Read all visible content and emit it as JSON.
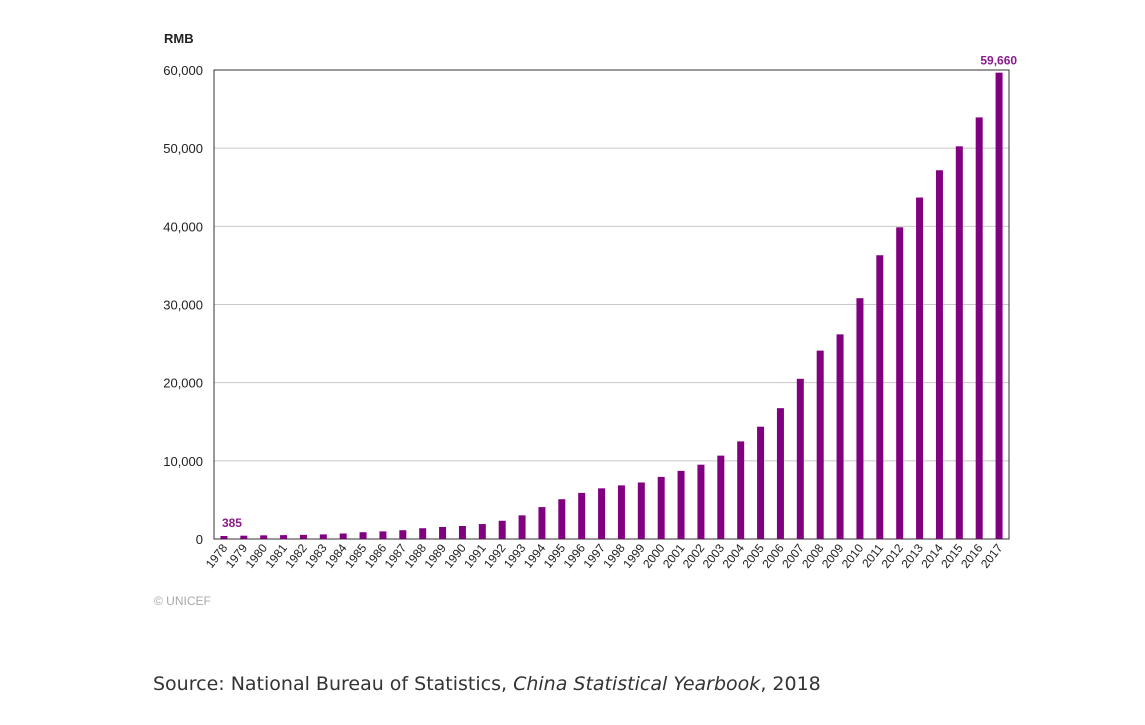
{
  "colors": {
    "bar": "#800080",
    "label_accent": "#8a1c8a",
    "grid": "#c8c8c8",
    "axis": "#333333",
    "text": "#222222"
  },
  "credit": "© UNICEF",
  "source": {
    "prefix": "Source: National Bureau of Statistics, ",
    "italic_title": "China Statistical Yearbook",
    "suffix": ", 2018"
  },
  "chart_data": {
    "type": "bar",
    "title": "",
    "xlabel": "",
    "ylabel": "RMB",
    "ylim": [
      0,
      60000
    ],
    "yticks": [
      0,
      10000,
      20000,
      30000,
      40000,
      50000,
      60000
    ],
    "ytick_labels": [
      "0",
      "10,000",
      "20,000",
      "30,000",
      "40,000",
      "50,000",
      "60,000"
    ],
    "grid": true,
    "categories": [
      "1978",
      "1979",
      "1980",
      "1981",
      "1982",
      "1983",
      "1984",
      "1985",
      "1986",
      "1987",
      "1988",
      "1989",
      "1990",
      "1991",
      "1992",
      "1993",
      "1994",
      "1995",
      "1996",
      "1997",
      "1998",
      "1999",
      "2000",
      "2001",
      "2002",
      "2003",
      "2004",
      "2005",
      "2006",
      "2007",
      "2008",
      "2009",
      "2010",
      "2011",
      "2012",
      "2013",
      "2014",
      "2015",
      "2016",
      "2017"
    ],
    "values": [
      385,
      423,
      468,
      497,
      533,
      588,
      702,
      866,
      973,
      1123,
      1378,
      1536,
      1663,
      1912,
      2334,
      3027,
      4081,
      5091,
      5898,
      6481,
      6860,
      7229,
      7942,
      8717,
      9506,
      10666,
      12487,
      14368,
      16738,
      20494,
      24100,
      26180,
      30808,
      36302,
      39874,
      43684,
      47173,
      50237,
      53935,
      59660
    ],
    "annotations": [
      {
        "category": "1978",
        "text": "385"
      },
      {
        "category": "2017",
        "text": "59,660"
      }
    ]
  }
}
